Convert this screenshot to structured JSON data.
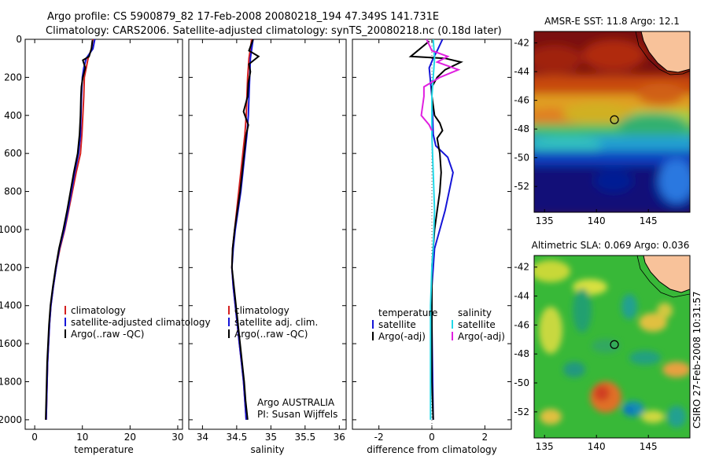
{
  "header": {
    "title_line1": "Argo profile: CS 5900879_82 17-Feb-2008 20080218_194 47.349S 141.731E",
    "title_line2": "Climatology: CARS2006. Satellite-adjusted climatology: synTS_20080218.nc (0.18d later)"
  },
  "colors": {
    "climatology": "#d42020",
    "satellite": "#1515d8",
    "argo": "#000000",
    "sal_satellite": "#22d8e8",
    "sal_argo": "#e020e0"
  },
  "panels": [
    {
      "id": "temperature",
      "xlabel": "temperature",
      "xlim": [
        -2,
        31
      ],
      "xticks": [
        0,
        10,
        20,
        30
      ],
      "legend": [
        "climatology",
        "satellite-adjusted climatology",
        "Argo(..raw -QC)"
      ],
      "series": [
        {
          "name": "climatology",
          "color": "#d42020",
          "points": [
            [
              12.2,
              0
            ],
            [
              11.9,
              50
            ],
            [
              11.2,
              100
            ],
            [
              10.8,
              150
            ],
            [
              10.4,
              200
            ],
            [
              10.3,
              300
            ],
            [
              10.1,
              400
            ],
            [
              9.9,
              500
            ],
            [
              9.6,
              600
            ],
            [
              8.7,
              700
            ],
            [
              7.9,
              800
            ],
            [
              7.1,
              900
            ],
            [
              6.3,
              1000
            ],
            [
              5.3,
              1100
            ],
            [
              4.5,
              1200
            ],
            [
              3.9,
              1300
            ],
            [
              3.4,
              1400
            ],
            [
              3.1,
              1500
            ],
            [
              2.9,
              1600
            ],
            [
              2.7,
              1700
            ],
            [
              2.6,
              1800
            ],
            [
              2.5,
              1900
            ],
            [
              2.4,
              2000
            ]
          ]
        },
        {
          "name": "satellite",
          "color": "#1515d8",
          "points": [
            [
              12.6,
              0
            ],
            [
              12.2,
              50
            ],
            [
              10.8,
              100
            ],
            [
              10.3,
              150
            ],
            [
              10.0,
              200
            ],
            [
              9.8,
              300
            ],
            [
              9.7,
              400
            ],
            [
              9.6,
              500
            ],
            [
              9.2,
              600
            ],
            [
              8.4,
              700
            ],
            [
              7.7,
              800
            ],
            [
              7.0,
              900
            ],
            [
              6.2,
              1000
            ],
            [
              5.2,
              1100
            ],
            [
              4.5,
              1200
            ],
            [
              3.9,
              1300
            ],
            [
              3.4,
              1400
            ],
            [
              3.1,
              1500
            ],
            [
              2.9,
              1600
            ],
            [
              2.7,
              1700
            ],
            [
              2.6,
              1800
            ],
            [
              2.5,
              1900
            ],
            [
              2.4,
              2000
            ]
          ]
        },
        {
          "name": "argo",
          "color": "#000000",
          "points": [
            [
              12.1,
              5
            ],
            [
              11.9,
              50
            ],
            [
              11.4,
              90
            ],
            [
              10.1,
              110
            ],
            [
              10.6,
              150
            ],
            [
              10.1,
              200
            ],
            [
              9.8,
              250
            ],
            [
              9.7,
              300
            ],
            [
              9.6,
              400
            ],
            [
              9.5,
              450
            ],
            [
              9.4,
              500
            ],
            [
              9.0,
              600
            ],
            [
              8.2,
              700
            ],
            [
              7.5,
              800
            ],
            [
              6.8,
              900
            ],
            [
              6.0,
              1000
            ],
            [
              5.1,
              1100
            ],
            [
              4.4,
              1200
            ],
            [
              3.8,
              1300
            ],
            [
              3.3,
              1400
            ],
            [
              3.0,
              1500
            ],
            [
              2.8,
              1600
            ],
            [
              2.6,
              1700
            ],
            [
              2.5,
              1800
            ],
            [
              2.4,
              1900
            ],
            [
              2.3,
              2000
            ]
          ]
        }
      ]
    },
    {
      "id": "salinity",
      "xlabel": "salinity",
      "xlim": [
        33.8,
        36.1
      ],
      "xticks": [
        34,
        34.5,
        35,
        35.5,
        36
      ],
      "legend": [
        "climatology",
        "satellite adj. clim.",
        "Argo(..raw -QC)"
      ],
      "annotation": [
        "Argo AUSTRALIA",
        "PI: Susan Wijffels"
      ],
      "series": [
        {
          "name": "climatology",
          "color": "#d42020",
          "points": [
            [
              34.72,
              0
            ],
            [
              34.68,
              100
            ],
            [
              34.66,
              200
            ],
            [
              34.65,
              300
            ],
            [
              34.64,
              400
            ],
            [
              34.62,
              500
            ],
            [
              34.59,
              600
            ],
            [
              34.56,
              700
            ],
            [
              34.53,
              800
            ],
            [
              34.5,
              900
            ],
            [
              34.47,
              1000
            ],
            [
              34.44,
              1100
            ],
            [
              34.43,
              1200
            ],
            [
              34.45,
              1300
            ],
            [
              34.48,
              1400
            ],
            [
              34.51,
              1500
            ],
            [
              34.54,
              1600
            ],
            [
              34.57,
              1700
            ],
            [
              34.6,
              1800
            ],
            [
              34.62,
              1900
            ],
            [
              34.64,
              2000
            ]
          ]
        },
        {
          "name": "satellite",
          "color": "#1515d8",
          "points": [
            [
              34.74,
              0
            ],
            [
              34.7,
              100
            ],
            [
              34.69,
              200
            ],
            [
              34.68,
              300
            ],
            [
              34.67,
              400
            ],
            [
              34.65,
              500
            ],
            [
              34.62,
              600
            ],
            [
              34.59,
              700
            ],
            [
              34.56,
              800
            ],
            [
              34.52,
              900
            ],
            [
              34.48,
              1000
            ],
            [
              34.45,
              1100
            ],
            [
              34.43,
              1200
            ],
            [
              34.45,
              1300
            ],
            [
              34.48,
              1400
            ],
            [
              34.51,
              1500
            ],
            [
              34.54,
              1600
            ],
            [
              34.57,
              1700
            ],
            [
              34.6,
              1800
            ],
            [
              34.62,
              1900
            ],
            [
              34.64,
              2000
            ]
          ]
        },
        {
          "name": "argo",
          "color": "#000000",
          "points": [
            [
              34.74,
              0
            ],
            [
              34.68,
              60
            ],
            [
              34.82,
              90
            ],
            [
              34.68,
              130
            ],
            [
              34.7,
              170
            ],
            [
              34.67,
              230
            ],
            [
              34.66,
              300
            ],
            [
              34.6,
              380
            ],
            [
              34.67,
              450
            ],
            [
              34.64,
              500
            ],
            [
              34.61,
              600
            ],
            [
              34.58,
              700
            ],
            [
              34.55,
              800
            ],
            [
              34.51,
              900
            ],
            [
              34.47,
              1000
            ],
            [
              34.44,
              1100
            ],
            [
              34.43,
              1200
            ],
            [
              34.46,
              1300
            ],
            [
              34.49,
              1400
            ],
            [
              34.52,
              1500
            ],
            [
              34.55,
              1600
            ],
            [
              34.58,
              1700
            ],
            [
              34.61,
              1800
            ],
            [
              34.63,
              1900
            ],
            [
              34.66,
              2000
            ]
          ]
        }
      ]
    },
    {
      "id": "difference",
      "xlabel": "difference from climatology",
      "xlim": [
        -3,
        3
      ],
      "xticks": [
        -2,
        0,
        2
      ],
      "legend_left_title": "temperature",
      "legend_right_title": "salinity",
      "legend_left": [
        "satellite",
        "Argo(-adj)"
      ],
      "legend_right": [
        "satellite",
        "Argo(-adj)"
      ],
      "series": [
        {
          "name": "temperature satellite",
          "color": "#1515d8",
          "points": [
            [
              0.4,
              0
            ],
            [
              0.2,
              60
            ],
            [
              0.05,
              100
            ],
            [
              -0.1,
              150
            ],
            [
              0.0,
              300
            ],
            [
              0.05,
              500
            ],
            [
              0.15,
              560
            ],
            [
              0.6,
              620
            ],
            [
              0.8,
              700
            ],
            [
              0.65,
              800
            ],
            [
              0.5,
              900
            ],
            [
              0.3,
              1000
            ],
            [
              0.1,
              1100
            ],
            [
              0.05,
              1200
            ],
            [
              0.0,
              1300
            ],
            [
              0.0,
              1500
            ],
            [
              0.05,
              2000
            ]
          ]
        },
        {
          "name": "temperature argo",
          "color": "#000000",
          "points": [
            [
              -0.1,
              10
            ],
            [
              -0.8,
              90
            ],
            [
              0.5,
              100
            ],
            [
              1.1,
              120
            ],
            [
              0.5,
              160
            ],
            [
              0.2,
              200
            ],
            [
              0.0,
              250
            ],
            [
              0.0,
              300
            ],
            [
              0.1,
              400
            ],
            [
              0.3,
              440
            ],
            [
              0.4,
              480
            ],
            [
              0.2,
              520
            ],
            [
              0.3,
              600
            ],
            [
              0.35,
              700
            ],
            [
              0.3,
              800
            ],
            [
              0.2,
              900
            ],
            [
              0.1,
              1000
            ],
            [
              0.05,
              1100
            ],
            [
              0.0,
              1200
            ],
            [
              0.0,
              1400
            ],
            [
              0.0,
              1600
            ],
            [
              0.0,
              1800
            ],
            [
              0.05,
              2000
            ]
          ]
        },
        {
          "name": "salinity satellite",
          "color": "#22d8e8",
          "points": [
            [
              0.05,
              0
            ],
            [
              0.1,
              100
            ],
            [
              0.05,
              200
            ],
            [
              0.0,
              300
            ],
            [
              0.0,
              500
            ],
            [
              0.05,
              700
            ],
            [
              0.1,
              900
            ],
            [
              0.05,
              1100
            ],
            [
              0.0,
              1200
            ],
            [
              -0.05,
              1400
            ],
            [
              -0.05,
              1600
            ],
            [
              -0.05,
              1800
            ],
            [
              -0.05,
              2000
            ]
          ]
        },
        {
          "name": "salinity argo",
          "color": "#e020e0",
          "points": [
            [
              -0.2,
              0
            ],
            [
              0.0,
              60
            ],
            [
              0.6,
              90
            ],
            [
              0.2,
              120
            ],
            [
              1.0,
              160
            ],
            [
              0.3,
              200
            ],
            [
              -0.3,
              250
            ],
            [
              -0.3,
              300
            ],
            [
              -0.4,
              400
            ],
            [
              -0.1,
              450
            ],
            [
              0.0,
              480
            ]
          ]
        }
      ]
    }
  ],
  "depth_axis": {
    "ylim": [
      0,
      2050
    ],
    "yticks": [
      0,
      200,
      400,
      600,
      800,
      1000,
      1200,
      1400,
      1600,
      1800,
      2000
    ]
  },
  "maps": [
    {
      "id": "sst",
      "title": "AMSR-E SST: 11.8 Argo: 12.1",
      "yticks": [
        "-42",
        "-44",
        "-46",
        "-48",
        "-50",
        "-52"
      ],
      "xticks": [
        "135",
        "140",
        "145"
      ]
    },
    {
      "id": "sla",
      "title": "Altimetric SLA: 0.069 Argo: 0.036",
      "yticks": [
        "-42",
        "-44",
        "-46",
        "-48",
        "-50",
        "-52"
      ],
      "xticks": [
        "135",
        "140",
        "145"
      ]
    }
  ],
  "map_geo": {
    "lon": [
      134,
      149
    ],
    "lat": [
      -41.2,
      -53.8
    ],
    "float_lon": 141.73,
    "float_lat": -47.35
  },
  "footer": {
    "stamp": "CSIRO 27-Feb-2008 10:31:57"
  }
}
